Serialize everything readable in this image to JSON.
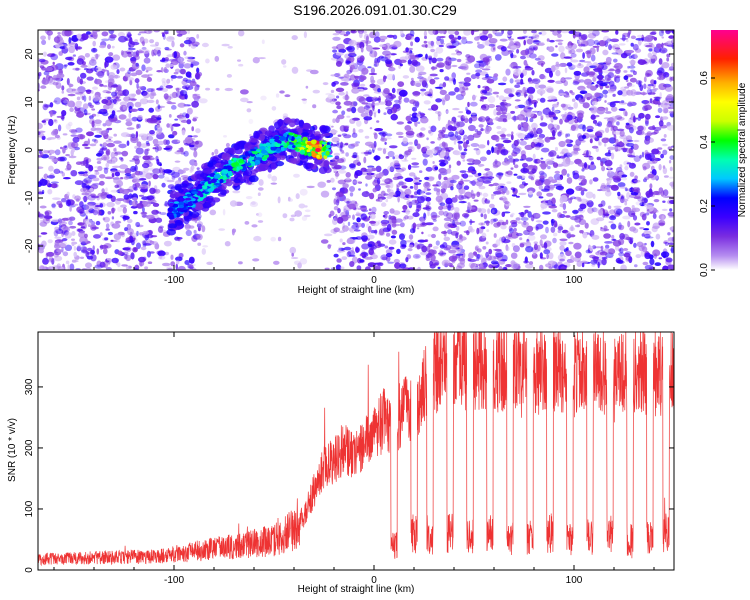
{
  "page_title": "S196.2026.091.01.30.C29",
  "chart_data": [
    {
      "type": "heatmap",
      "title": "S196.2026.091.01.30.C29",
      "xlabel": "Height of straight line (km)",
      "ylabel": "Frequency (Hz)",
      "xlim": [
        -168,
        150
      ],
      "ylim": [
        -25,
        25
      ],
      "xticks": [
        -100,
        0,
        100
      ],
      "yticks": [
        -20,
        -10,
        0,
        10,
        20
      ],
      "background_noise_level": 0.18,
      "gap_region_km": [
        -87,
        -21
      ],
      "trace": {
        "description": "signal ridge",
        "points": [
          {
            "x": -102,
            "freq": -13,
            "amp": 0.3
          },
          {
            "x": -90,
            "freq": -10,
            "amp": 0.32
          },
          {
            "x": -82,
            "freq": -7,
            "amp": 0.38
          },
          {
            "x": -72,
            "freq": -4,
            "amp": 0.4
          },
          {
            "x": -62,
            "freq": -2,
            "amp": 0.42
          },
          {
            "x": -50,
            "freq": 1,
            "amp": 0.38
          },
          {
            "x": -42,
            "freq": 2,
            "amp": 0.42
          },
          {
            "x": -35,
            "freq": 1,
            "amp": 0.55
          },
          {
            "x": -28,
            "freq": 0,
            "amp": 0.72
          },
          {
            "x": -22,
            "freq": 0,
            "amp": 0.4
          }
        ]
      },
      "colorbar": {
        "label": "Normalized spectral amplitude",
        "range": [
          0.0,
          0.75
        ],
        "ticks": [
          0.0,
          0.2,
          0.4,
          0.6
        ],
        "tick_labels": [
          "0.0",
          "0.2",
          "0.4",
          "0.6"
        ],
        "colors": [
          "#ffffff",
          "#b58cf0",
          "#7a2de0",
          "#3a00ff",
          "#0000ff",
          "#00c8ff",
          "#00ffb0",
          "#00ff00",
          "#ccff00",
          "#ffff00",
          "#ffb000",
          "#ff2000",
          "#ff0090"
        ]
      }
    },
    {
      "type": "line",
      "title": "",
      "xlabel": "Height of straight line (km)",
      "ylabel": "SNR (10 * v/v)",
      "xlim": [
        -168,
        150
      ],
      "ylim": [
        0,
        390
      ],
      "xticks": [
        -100,
        0,
        100
      ],
      "yticks": [
        0,
        100,
        200,
        300
      ],
      "series": [
        {
          "name": "SNR",
          "color": "#ee3333",
          "envelope": {
            "x": [
              -168,
              -140,
              -110,
              -95,
              -80,
              -65,
              -50,
              -40,
              -35,
              -30,
              -25,
              -20,
              -15,
              -10,
              -5,
              0,
              5,
              10,
              15,
              20,
              25,
              30,
              40,
              50,
              60,
              70,
              80,
              90,
              100,
              110,
              120,
              130,
              140,
              150
            ],
            "y": [
              18,
              20,
              22,
              28,
              35,
              40,
              50,
              65,
              90,
              130,
              170,
              180,
              200,
              185,
              205,
              220,
              250,
              230,
              270,
              250,
              300,
              320,
              330,
              335,
              330,
              335,
              325,
              330,
              320,
              330,
              320,
              325,
              320,
              330
            ]
          },
          "dropouts": {
            "x": [
              10,
              20,
              28,
              38,
              48,
              58,
              68,
              78,
              88,
              98,
              108,
              118,
              128,
              138,
              146
            ],
            "y": [
              40,
              60,
              50,
              60,
              55,
              60,
              50,
              55,
              60,
              50,
              55,
              60,
              50,
              55,
              60
            ]
          }
        }
      ]
    }
  ]
}
